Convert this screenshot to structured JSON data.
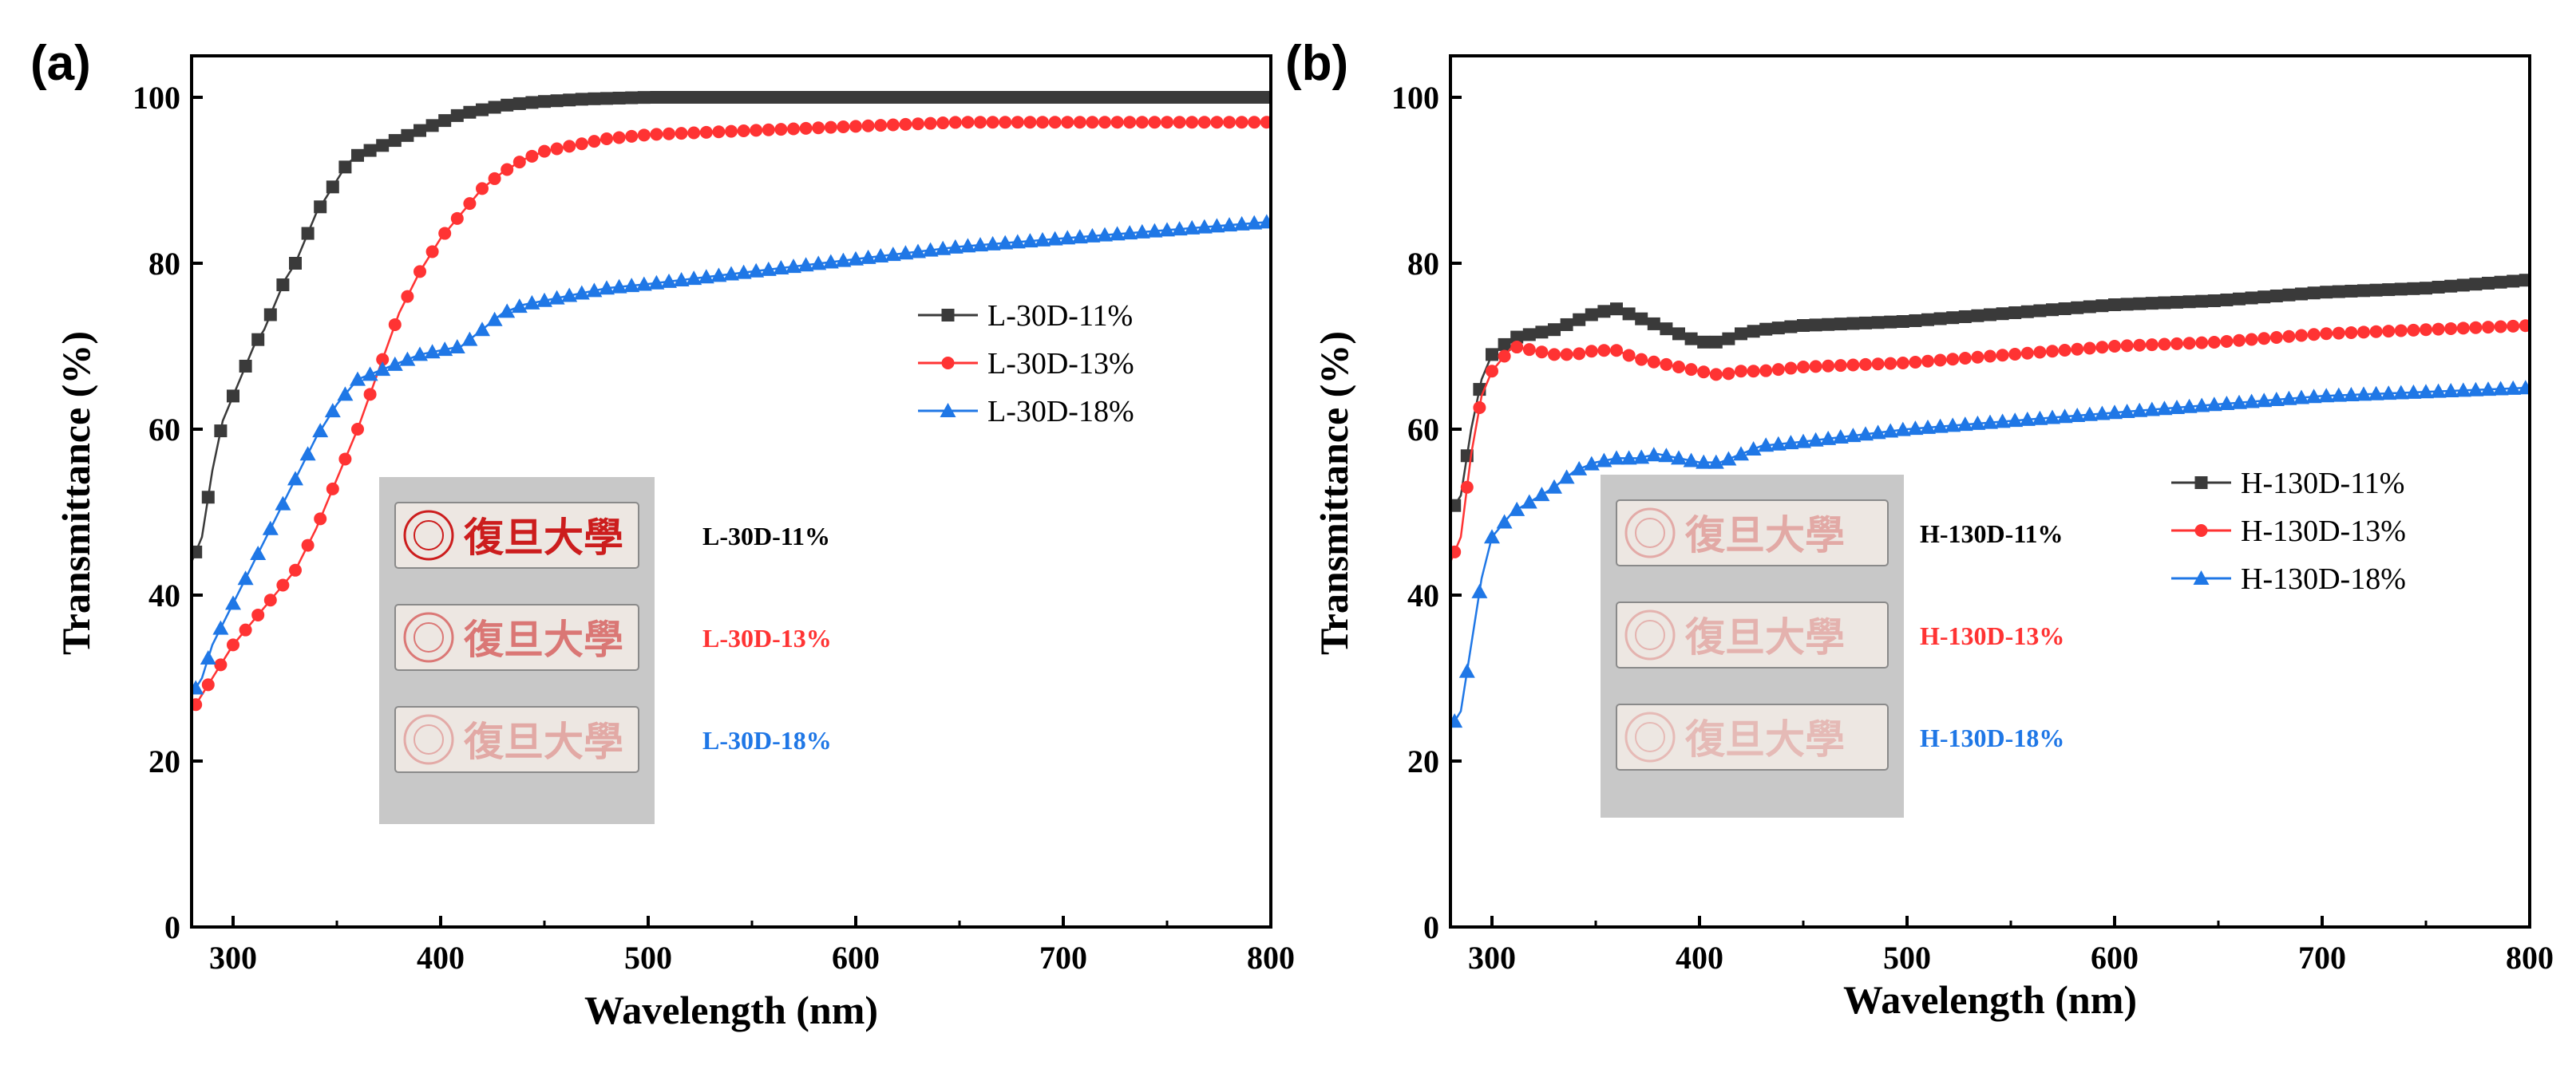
{
  "chart_data": [
    {
      "type": "line",
      "panel_label": "(a)",
      "xlabel": "Wavelength (nm)",
      "ylabel": "Transmittance (%)",
      "xlim": [
        280,
        800
      ],
      "ylim": [
        0,
        105
      ],
      "xticks": [
        300,
        400,
        500,
        600,
        700,
        800
      ],
      "yticks": [
        0,
        20,
        40,
        60,
        80,
        100
      ],
      "legend_position": "right-middle",
      "series": [
        {
          "name": "L-30D-11%",
          "color": "#3a3a3a",
          "marker": "square",
          "points": [
            [
              280,
              44
            ],
            [
              285,
              47
            ],
            [
              290,
              55
            ],
            [
              295,
              61
            ],
            [
              300,
              64
            ],
            [
              305,
              67
            ],
            [
              310,
              70
            ],
            [
              315,
              72
            ],
            [
              320,
              75
            ],
            [
              325,
              78
            ],
            [
              330,
              80
            ],
            [
              335,
              83
            ],
            [
              340,
              86
            ],
            [
              345,
              88
            ],
            [
              350,
              90
            ],
            [
              355,
              92
            ],
            [
              360,
              93
            ],
            [
              370,
              94
            ],
            [
              380,
              95
            ],
            [
              390,
              96
            ],
            [
              400,
              97
            ],
            [
              410,
              98
            ],
            [
              420,
              98.5
            ],
            [
              430,
              99
            ],
            [
              440,
              99.3
            ],
            [
              450,
              99.5
            ],
            [
              470,
              99.8
            ],
            [
              500,
              100
            ],
            [
              550,
              100
            ],
            [
              600,
              100
            ],
            [
              650,
              100
            ],
            [
              700,
              100
            ],
            [
              750,
              100
            ],
            [
              800,
              100
            ]
          ]
        },
        {
          "name": "L-30D-13%",
          "color": "#ff3333",
          "marker": "circle",
          "points": [
            [
              280,
              26
            ],
            [
              285,
              28
            ],
            [
              290,
              30
            ],
            [
              295,
              32
            ],
            [
              300,
              34
            ],
            [
              310,
              37
            ],
            [
              320,
              40
            ],
            [
              330,
              43
            ],
            [
              340,
              48
            ],
            [
              350,
              54
            ],
            [
              360,
              60
            ],
            [
              370,
              67
            ],
            [
              380,
              74
            ],
            [
              390,
              79
            ],
            [
              400,
              83
            ],
            [
              410,
              86
            ],
            [
              420,
              89
            ],
            [
              430,
              91
            ],
            [
              440,
              92.5
            ],
            [
              450,
              93.5
            ],
            [
              460,
              94
            ],
            [
              480,
              95
            ],
            [
              500,
              95.5
            ],
            [
              550,
              96
            ],
            [
              600,
              96.5
            ],
            [
              650,
              97
            ],
            [
              700,
              97
            ],
            [
              750,
              97
            ],
            [
              800,
              97
            ]
          ]
        },
        {
          "name": "L-30D-18%",
          "color": "#1f77e6",
          "marker": "triangle",
          "points": [
            [
              280,
              28
            ],
            [
              285,
              30
            ],
            [
              290,
              34
            ],
            [
              300,
              39
            ],
            [
              310,
              44
            ],
            [
              320,
              49
            ],
            [
              330,
              54
            ],
            [
              340,
              59
            ],
            [
              350,
              63
            ],
            [
              360,
              66
            ],
            [
              370,
              67
            ],
            [
              380,
              68
            ],
            [
              390,
              69
            ],
            [
              400,
              69.5
            ],
            [
              410,
              70
            ],
            [
              420,
              72
            ],
            [
              430,
              74
            ],
            [
              440,
              75
            ],
            [
              450,
              75.5
            ],
            [
              460,
              76
            ],
            [
              480,
              77
            ],
            [
              500,
              77.5
            ],
            [
              550,
              79
            ],
            [
              600,
              80.5
            ],
            [
              650,
              82
            ],
            [
              700,
              83
            ],
            [
              750,
              84
            ],
            [
              800,
              85
            ]
          ]
        }
      ],
      "inset_samples": [
        {
          "label": "L-30D-11%",
          "label_color": "#000000",
          "opacity": 1.0
        },
        {
          "label": "L-30D-13%",
          "label_color": "#ff3333",
          "opacity": 0.55
        },
        {
          "label": "L-30D-18%",
          "label_color": "#1f77e6",
          "opacity": 0.3
        }
      ]
    },
    {
      "type": "line",
      "panel_label": "(b)",
      "xlabel": "Wavelength (nm)",
      "ylabel": "Transmittance (%)",
      "xlim": [
        280,
        800
      ],
      "ylim": [
        0,
        105
      ],
      "xticks": [
        300,
        400,
        500,
        600,
        700,
        800
      ],
      "yticks": [
        0,
        20,
        40,
        60,
        80,
        100
      ],
      "legend_position": "right-middle",
      "series": [
        {
          "name": "H-130D-11%",
          "color": "#3a3a3a",
          "marker": "square",
          "points": [
            [
              280,
              50
            ],
            [
              285,
              52
            ],
            [
              290,
              60
            ],
            [
              295,
              66
            ],
            [
              300,
              69
            ],
            [
              310,
              71
            ],
            [
              320,
              71.5
            ],
            [
              330,
              72
            ],
            [
              340,
              73
            ],
            [
              350,
              74
            ],
            [
              360,
              74.5
            ],
            [
              370,
              73.5
            ],
            [
              380,
              72.5
            ],
            [
              390,
              71.5
            ],
            [
              400,
              70.5
            ],
            [
              410,
              70.5
            ],
            [
              420,
              71.5
            ],
            [
              430,
              72
            ],
            [
              450,
              72.5
            ],
            [
              500,
              73
            ],
            [
              550,
              74
            ],
            [
              600,
              75
            ],
            [
              650,
              75.5
            ],
            [
              700,
              76.5
            ],
            [
              750,
              77
            ],
            [
              800,
              78
            ]
          ]
        },
        {
          "name": "H-130D-13%",
          "color": "#ff3333",
          "marker": "circle",
          "points": [
            [
              280,
              44
            ],
            [
              285,
              47
            ],
            [
              290,
              57
            ],
            [
              295,
              64
            ],
            [
              300,
              67
            ],
            [
              310,
              70
            ],
            [
              320,
              69.5
            ],
            [
              330,
              69
            ],
            [
              340,
              69
            ],
            [
              350,
              69.5
            ],
            [
              360,
              69.5
            ],
            [
              370,
              68.5
            ],
            [
              380,
              68
            ],
            [
              390,
              67.5
            ],
            [
              400,
              67
            ],
            [
              410,
              66.5
            ],
            [
              420,
              67
            ],
            [
              430,
              67
            ],
            [
              450,
              67.5
            ],
            [
              500,
              68
            ],
            [
              550,
              69
            ],
            [
              600,
              70
            ],
            [
              650,
              70.5
            ],
            [
              700,
              71.5
            ],
            [
              750,
              72
            ],
            [
              800,
              72.5
            ]
          ]
        },
        {
          "name": "H-130D-18%",
          "color": "#1f77e6",
          "marker": "triangle",
          "points": [
            [
              280,
              24
            ],
            [
              285,
              26
            ],
            [
              290,
              34
            ],
            [
              295,
              42
            ],
            [
              300,
              47
            ],
            [
              310,
              50
            ],
            [
              320,
              51.5
            ],
            [
              330,
              53
            ],
            [
              340,
              55
            ],
            [
              350,
              56
            ],
            [
              360,
              56.5
            ],
            [
              370,
              56.5
            ],
            [
              380,
              57
            ],
            [
              390,
              56.5
            ],
            [
              400,
              56
            ],
            [
              410,
              56
            ],
            [
              420,
              57
            ],
            [
              430,
              58
            ],
            [
              450,
              58.5
            ],
            [
              500,
              60
            ],
            [
              550,
              61
            ],
            [
              600,
              62
            ],
            [
              650,
              63
            ],
            [
              700,
              64
            ],
            [
              750,
              64.5
            ],
            [
              800,
              65
            ]
          ]
        }
      ],
      "inset_samples": [
        {
          "label": "H-130D-11%",
          "label_color": "#000000",
          "opacity": 0.3
        },
        {
          "label": "H-130D-13%",
          "label_color": "#ff3333",
          "opacity": 0.26
        },
        {
          "label": "H-130D-18%",
          "label_color": "#1f77e6",
          "opacity": 0.22
        }
      ]
    }
  ],
  "stamp_text": "復旦大學"
}
